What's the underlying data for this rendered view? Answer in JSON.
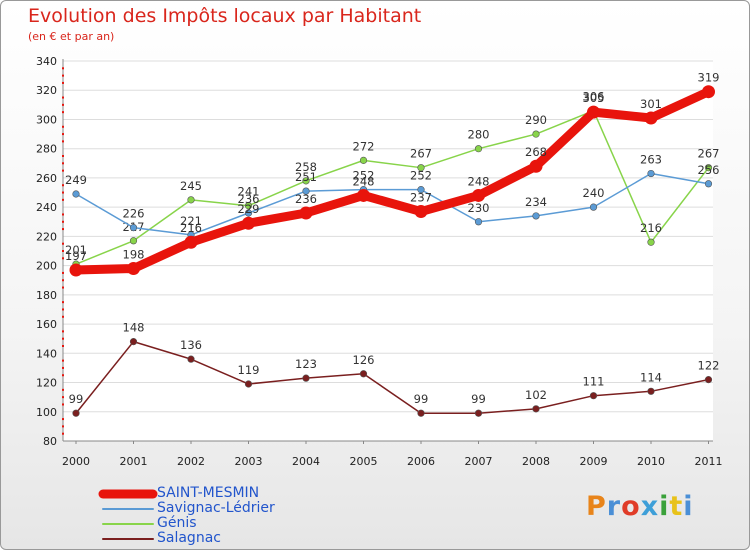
{
  "header": {
    "title": "Evolution des Impôts locaux par Habitant",
    "subtitle": "(en € et par an)"
  },
  "brand": {
    "text": "Proxiti",
    "colors": [
      "#e8841a",
      "#4a8fd6",
      "#e03c28",
      "#3e9fd8",
      "#3aa13a",
      "#e8c21a",
      "#4a8fd6"
    ]
  },
  "chart_data": {
    "type": "line",
    "title": "Evolution des Impôts locaux par Habitant",
    "subtitle": "(en € et par an)",
    "xlabel": "",
    "ylabel": "",
    "categories": [
      "2000",
      "2001",
      "2002",
      "2003",
      "2004",
      "2005",
      "2006",
      "2007",
      "2008",
      "2009",
      "2010",
      "2011"
    ],
    "ylim": [
      80,
      340
    ],
    "yticks": [
      80,
      100,
      120,
      140,
      160,
      180,
      200,
      220,
      240,
      260,
      280,
      300,
      320,
      340
    ],
    "legend_position": "bottom-left",
    "series": [
      {
        "name": "Salagnac",
        "color": "#7a1f1f",
        "values": [
          99,
          148,
          136,
          119,
          123,
          126,
          99,
          99,
          102,
          111,
          114,
          122
        ],
        "labels": [
          "99",
          "148",
          "136",
          "119",
          "123",
          "126",
          "99",
          "99",
          "102",
          "111",
          "114",
          "122"
        ]
      },
      {
        "name": "Génis",
        "color": "#88d44a",
        "values": [
          201,
          217,
          245,
          241,
          258,
          272,
          267,
          280,
          290,
          306,
          216,
          267
        ],
        "labels": [
          "201",
          "217",
          "245",
          "241",
          "258",
          "272",
          "267",
          "280",
          "290",
          "306",
          "216",
          "267"
        ]
      },
      {
        "name": "Savignac-Lédrier",
        "color": "#5b9bd5",
        "values": [
          249,
          226,
          221,
          236,
          251,
          252,
          252,
          230,
          234,
          240,
          263,
          256
        ],
        "labels": [
          "249",
          "226",
          "221",
          "236",
          "251",
          "252",
          "252",
          "230",
          "234",
          "240",
          "263",
          "256"
        ]
      },
      {
        "name": "SAINT-MESMIN",
        "color": "#e8140c",
        "values": [
          197,
          198,
          216,
          229,
          236,
          248,
          237,
          248,
          268,
          305,
          301,
          319
        ],
        "labels": [
          "197",
          "198",
          "216",
          "229",
          "236",
          "248",
          "237",
          "248",
          "268",
          "305",
          "301",
          "319"
        ]
      }
    ],
    "legend_order": [
      "SAINT-MESMIN",
      "Savignac-Lédrier",
      "Génis",
      "Salagnac"
    ]
  }
}
